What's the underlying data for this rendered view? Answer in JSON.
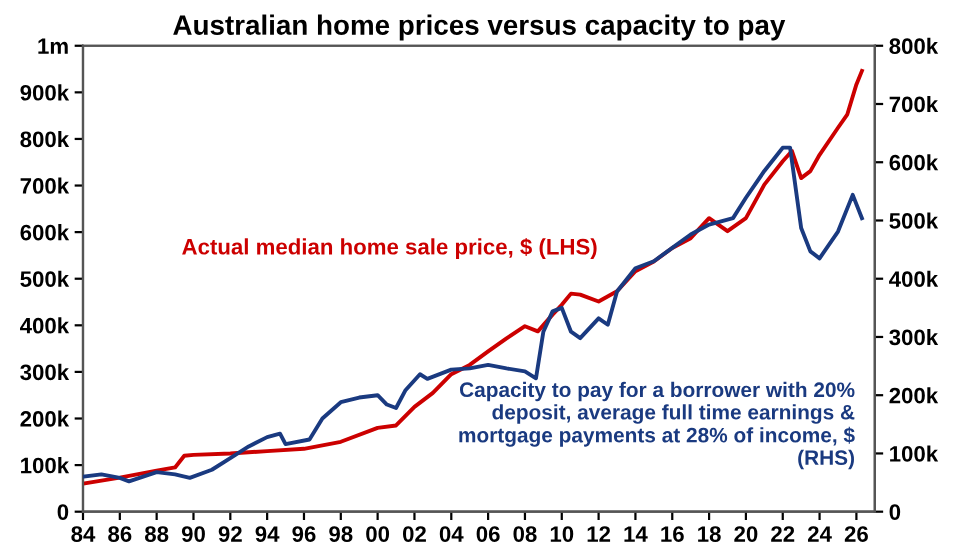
{
  "chart_data": {
    "type": "line",
    "title": "Australian home prices versus capacity to pay",
    "xlim": [
      1984,
      2027
    ],
    "xticks": [
      {
        "value": 1984,
        "label": "84"
      },
      {
        "value": 1986,
        "label": "86"
      },
      {
        "value": 1988,
        "label": "88"
      },
      {
        "value": 1990,
        "label": "90"
      },
      {
        "value": 1992,
        "label": "92"
      },
      {
        "value": 1994,
        "label": "94"
      },
      {
        "value": 1996,
        "label": "96"
      },
      {
        "value": 1998,
        "label": "98"
      },
      {
        "value": 2000,
        "label": "00"
      },
      {
        "value": 2002,
        "label": "02"
      },
      {
        "value": 2004,
        "label": "04"
      },
      {
        "value": 2006,
        "label": "06"
      },
      {
        "value": 2008,
        "label": "08"
      },
      {
        "value": 2010,
        "label": "10"
      },
      {
        "value": 2012,
        "label": "12"
      },
      {
        "value": 2014,
        "label": "14"
      },
      {
        "value": 2016,
        "label": "16"
      },
      {
        "value": 2018,
        "label": "18"
      },
      {
        "value": 2020,
        "label": "20"
      },
      {
        "value": 2022,
        "label": "22"
      },
      {
        "value": 2024,
        "label": "24"
      },
      {
        "value": 2026,
        "label": "26"
      }
    ],
    "ylim": [
      0,
      1000000
    ],
    "yticks": [
      0,
      {
        "value": 100000,
        "label": "100k"
      },
      {
        "value": 200000,
        "label": "200k"
      },
      {
        "value": 300000,
        "label": "300k"
      },
      {
        "value": 400000,
        "label": "400k"
      },
      {
        "value": 500000,
        "label": "500k"
      },
      {
        "value": 600000,
        "label": "600k"
      },
      {
        "value": 700000,
        "label": "700k"
      },
      {
        "value": 800000,
        "label": "800k"
      },
      {
        "value": 900000,
        "label": "900k"
      },
      {
        "value": 1000000,
        "label": "1m"
      }
    ],
    "y2lim": [
      0,
      800000
    ],
    "y2ticks": [
      0,
      {
        "value": 100000,
        "label": "100k"
      },
      {
        "value": 200000,
        "label": "200k"
      },
      {
        "value": 300000,
        "label": "300k"
      },
      {
        "value": 400000,
        "label": "400k"
      },
      {
        "value": 500000,
        "label": "500k"
      },
      {
        "value": 600000,
        "label": "600k"
      },
      {
        "value": 700000,
        "label": "700k"
      },
      {
        "value": 800000,
        "label": "800k"
      }
    ],
    "grid": false,
    "legend": false,
    "marker": "none",
    "line_style": "solid",
    "series": [
      {
        "name": "Actual median home sale price, $ (LHS)",
        "color": "#cc0000",
        "x": [
          1984,
          1986,
          1988,
          1989,
          1989.5,
          1990,
          1992,
          1994,
          1996,
          1998,
          2000,
          2001,
          2002,
          2003,
          2004,
          2005,
          2006,
          2007,
          2008,
          2008.7,
          2009.5,
          2010,
          2010.5,
          2011,
          2012,
          2013,
          2014,
          2015,
          2016,
          2017,
          2018,
          2019,
          2020,
          2021,
          2022,
          2022.5,
          2023,
          2023.5,
          2024,
          2025,
          2025.5,
          2026,
          2026.3
        ],
        "values": [
          60000,
          73000,
          88000,
          95000,
          120000,
          122000,
          125000,
          130000,
          135000,
          150000,
          180000,
          185000,
          225000,
          255000,
          295000,
          315000,
          344000,
          372000,
          398000,
          387000,
          423000,
          444000,
          468000,
          466000,
          451000,
          473000,
          516000,
          537000,
          566000,
          587000,
          630000,
          602000,
          630000,
          702000,
          752000,
          774000,
          716000,
          731000,
          766000,
          824000,
          852000,
          917000,
          946000
        ]
      },
      {
        "name": "Capacity to pay for a borrower with 20% deposit, average full time earnings & mortgage payments at 28% of income, $ (RHS)",
        "color": "#1a3a80",
        "axis": "y2",
        "x": [
          1984,
          1985,
          1986,
          1986.5,
          1988,
          1989,
          1989.8,
          1991,
          1992,
          1993,
          1994,
          1994.7,
          1995,
          1996.3,
          1997,
          1998,
          1999,
          2000,
          2000.5,
          2001,
          2001.5,
          2002.3,
          2002.7,
          2004,
          2005,
          2006,
          2007,
          2008,
          2008.6,
          2009,
          2009.5,
          2010,
          2010.5,
          2011,
          2012,
          2012.5,
          2013,
          2014,
          2015,
          2016,
          2017,
          2018,
          2019.3,
          2020,
          2021,
          2022,
          2022.4,
          2023,
          2023.5,
          2024,
          2025,
          2025.8,
          2026.3
        ],
        "values": [
          60000,
          64000,
          58000,
          52000,
          68000,
          64000,
          58000,
          72000,
          92000,
          112000,
          128000,
          134000,
          116000,
          124000,
          160000,
          188000,
          196000,
          200000,
          184000,
          178000,
          208000,
          236000,
          228000,
          244000,
          246000,
          252000,
          246000,
          241000,
          229000,
          309000,
          344000,
          350000,
          309000,
          298000,
          332000,
          321000,
          378000,
          418000,
          430000,
          453000,
          476000,
          493000,
          504000,
          539000,
          585000,
          625000,
          625000,
          487000,
          447000,
          435000,
          481000,
          544000,
          504000
        ]
      }
    ]
  }
}
